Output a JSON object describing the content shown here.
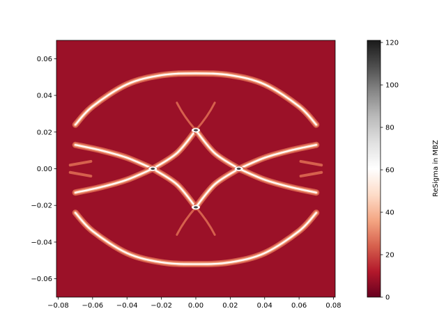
{
  "chart_data": {
    "type": "heatmap",
    "title": "",
    "xlabel": "",
    "ylabel": "",
    "xlim": [
      -0.081,
      0.081
    ],
    "ylim": [
      -0.07,
      0.07
    ],
    "xticks": [
      -0.08,
      -0.06,
      -0.04,
      -0.02,
      0.0,
      0.02,
      0.04,
      0.06,
      0.08
    ],
    "xtick_labels": [
      "−0.08",
      "−0.06",
      "−0.04",
      "−0.02",
      "0.00",
      "0.02",
      "0.04",
      "0.06",
      "0.08"
    ],
    "yticks": [
      -0.06,
      -0.04,
      -0.02,
      0.0,
      0.02,
      0.04,
      0.06
    ],
    "ytick_labels": [
      "−0.06",
      "−0.04",
      "−0.02",
      "0.00",
      "0.02",
      "0.04",
      "0.06"
    ],
    "colorbar": {
      "label": "ReSigma in MBZ",
      "range": [
        0,
        121
      ],
      "ticks": [
        0,
        20,
        40,
        60,
        80,
        100,
        120
      ],
      "tick_labels": [
        "0",
        "20",
        "40",
        "60",
        "80",
        "100",
        "120"
      ],
      "colormap": "RdGy",
      "stops": [
        {
          "value": 0,
          "color": "#67001f"
        },
        {
          "value": 12,
          "color": "#b2182b"
        },
        {
          "value": 24,
          "color": "#d6604d"
        },
        {
          "value": 36,
          "color": "#f4a582"
        },
        {
          "value": 48,
          "color": "#fddbc7"
        },
        {
          "value": 60.5,
          "color": "#ffffff"
        },
        {
          "value": 73,
          "color": "#e0e0e0"
        },
        {
          "value": 85,
          "color": "#bababa"
        },
        {
          "value": 97,
          "color": "#878787"
        },
        {
          "value": 109,
          "color": "#4d4d4d"
        },
        {
          "value": 121,
          "color": "#1a1a1a"
        }
      ]
    },
    "background_value": 8,
    "background_color": "#9b1128",
    "features": [
      {
        "name": "outer-arc",
        "points": [
          [
            -0.07,
            0.024
          ],
          [
            -0.06,
            0.034
          ],
          [
            -0.04,
            0.046
          ],
          [
            -0.02,
            0.051
          ],
          [
            0,
            0.052
          ],
          [
            0.02,
            0.051
          ],
          [
            0.04,
            0.046
          ],
          [
            0.06,
            0.034
          ],
          [
            0.07,
            0.024
          ]
        ],
        "level": 55
      },
      {
        "name": "inner-diamond",
        "points": [
          [
            -0.025,
            0
          ],
          [
            0,
            0.021
          ],
          [
            0.025,
            0
          ],
          [
            0,
            -0.021
          ],
          [
            -0.025,
            0
          ]
        ],
        "level": 55
      },
      {
        "name": "saddle-points",
        "points": [
          [
            -0.025,
            0
          ],
          [
            0.025,
            0
          ],
          [
            0,
            0.021
          ],
          [
            0,
            -0.021
          ]
        ],
        "level": 110
      },
      {
        "name": "side-branches",
        "points": [
          [
            -0.025,
            0
          ],
          [
            -0.05,
            0.01
          ],
          [
            -0.07,
            0.013
          ],
          [
            -0.025,
            0
          ],
          [
            -0.05,
            -0.01
          ],
          [
            -0.07,
            -0.013
          ]
        ],
        "level": 40
      }
    ]
  }
}
